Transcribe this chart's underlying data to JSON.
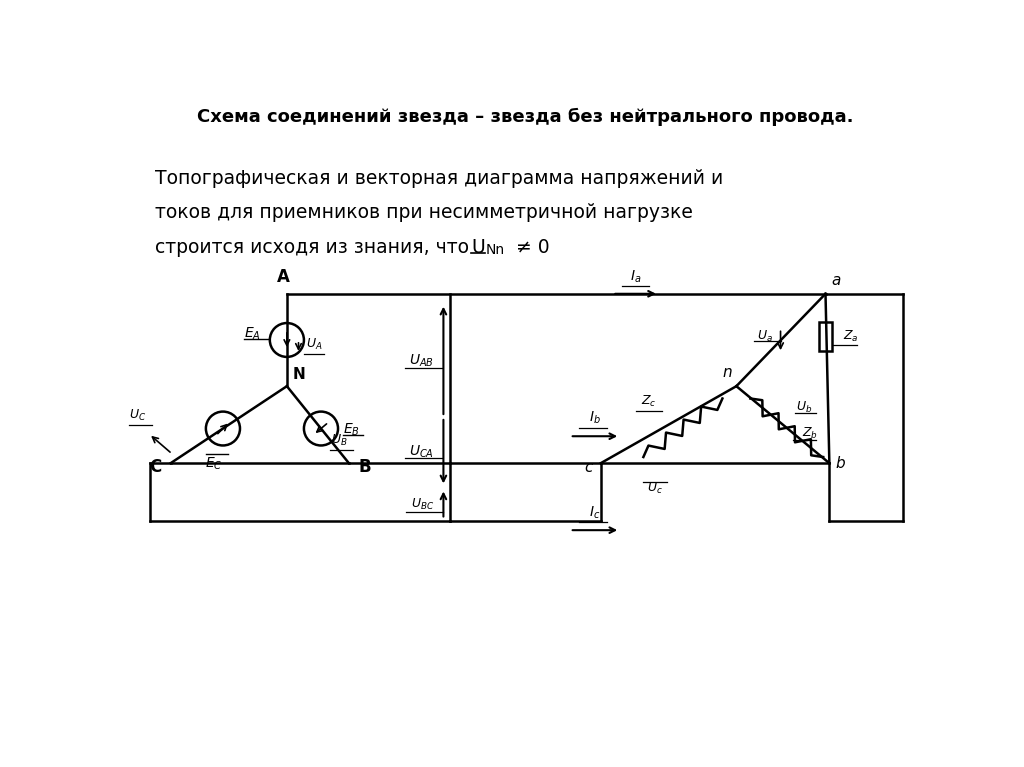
{
  "title": "Схема соединений звезда – звезда без нейтрального провода.",
  "body_line1": "Топографическая и векторная диаграмма напряжений и",
  "body_line2": "токов для приемников при несимметричной нагрузке",
  "body_line3a": "строится исходя из знания, что ",
  "body_line3b": "U",
  "body_line3c": "Nn",
  "body_line3d": " ≠ 0",
  "bg_color": "#ffffff"
}
